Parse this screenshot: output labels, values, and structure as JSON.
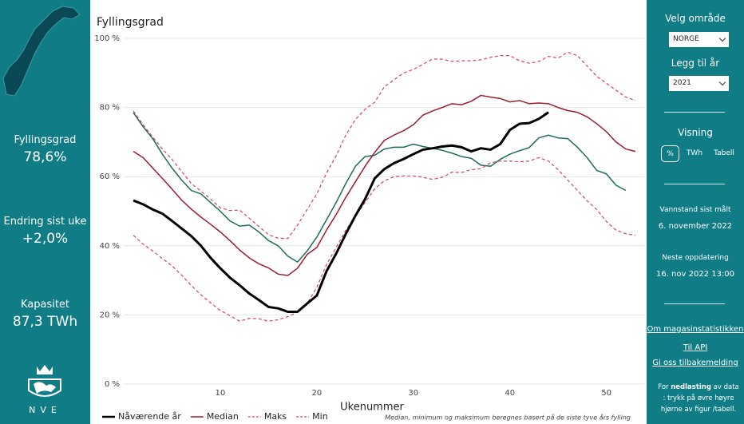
{
  "left_panel": {
    "stats": [
      {
        "label": "Fyllingsgrad",
        "value": "78,6%"
      },
      {
        "label": "Endring sist uke",
        "value": "+2,0%"
      },
      {
        "label": "Kapasitet",
        "value": "87,3 TWh"
      }
    ],
    "logo_text": "NVE"
  },
  "right_panel": {
    "area_label": "Velg område",
    "area_value": "NORGE",
    "year_label": "Legg til år",
    "year_value": "2021",
    "view_label": "Visning",
    "view_options": [
      "%",
      "TWh",
      "Tabell"
    ],
    "measured_label": "Vannstand sist målt",
    "measured_value": "6. november 2022",
    "update_label": "Neste oppdatering",
    "update_value": "16. nov 2022 13:00",
    "links": [
      "Om magasinstatistikken",
      "Til API",
      "Gi oss tilbakemelding"
    ],
    "note": {
      "before": "For",
      "bold": "nedlasting",
      "after": "av data : trykk på øvre høyre hjørne av figur /tabell."
    }
  },
  "chart_data": {
    "type": "line",
    "title": "Fyllingsgrad",
    "xlabel": "Ukenummer",
    "note": "Median, minimum og maksimum beregnes basert på de siste tyve års fylling",
    "x": [
      1,
      2,
      3,
      4,
      5,
      6,
      7,
      8,
      9,
      10,
      11,
      12,
      13,
      14,
      15,
      16,
      17,
      18,
      19,
      20,
      21,
      22,
      23,
      24,
      25,
      26,
      27,
      28,
      29,
      30,
      31,
      32,
      33,
      34,
      35,
      36,
      37,
      38,
      39,
      40,
      41,
      42,
      43,
      44,
      45,
      46,
      47,
      48,
      49,
      50,
      51,
      52,
      53
    ],
    "xlim": [
      0,
      54
    ],
    "xticks": [
      10,
      20,
      30,
      40,
      50
    ],
    "ylim": [
      0,
      100
    ],
    "yticks": [
      {
        "value": 0,
        "label": "0 %"
      },
      {
        "value": 20,
        "label": "20 %"
      },
      {
        "value": 40,
        "label": "40 %"
      },
      {
        "value": 60,
        "label": "60 %"
      },
      {
        "value": 80,
        "label": "80 %"
      },
      {
        "value": 100,
        "label": "100 %"
      }
    ],
    "grid": true,
    "series": [
      {
        "color": "#1e6b5c",
        "dashed": false,
        "line_width": 1.5,
        "values": [
          78.5,
          74.5,
          71,
          66.5,
          62.5,
          59,
          56,
          55,
          52.5,
          50,
          47.2,
          45.7,
          46,
          44,
          41.5,
          40,
          37,
          35.3,
          38.5,
          42.5,
          47.5,
          52.5,
          58,
          63,
          65.8,
          66.2,
          68,
          68.5,
          68.5,
          69.4,
          68.7,
          68.2,
          67.6,
          66.8,
          65.8,
          65.3,
          63.3,
          63,
          65,
          66.5,
          67.5,
          68.4,
          71.2,
          72,
          71.2,
          71,
          68.5,
          65.5,
          61.8,
          60.8,
          57.5,
          56,
          null
        ]
      },
      {
        "name": "Min",
        "color": "#d6455a",
        "dashed": true,
        "line_width": 1.2,
        "values": [
          43,
          40.5,
          38.5,
          36.3,
          34.2,
          31.5,
          28.5,
          25.8,
          23.5,
          21.3,
          19.8,
          18.2,
          19,
          18.9,
          18.2,
          18.6,
          19.5,
          20.8,
          23.3,
          28,
          34.5,
          39.5,
          44.5,
          48.5,
          52.5,
          56.5,
          58.8,
          60,
          60.2,
          60.2,
          59.8,
          59.2,
          59.8,
          61.3,
          61.2,
          62,
          62.3,
          64,
          64.5,
          64.5,
          64.3,
          64.5,
          65.5,
          64.5,
          62,
          59,
          56,
          53,
          50.5,
          47,
          44.5,
          43.5,
          43
        ]
      },
      {
        "name": "Maks",
        "color": "#d6455a",
        "dashed": true,
        "line_width": 1.2,
        "values": [
          79,
          75,
          71.5,
          68,
          65,
          61.5,
          58,
          55.8,
          53.5,
          51,
          50.2,
          50.3,
          48,
          45.6,
          43.2,
          42.2,
          42.1,
          46,
          50.5,
          55,
          61,
          66,
          72,
          76.5,
          79.5,
          81.5,
          86,
          88,
          90,
          91,
          92.5,
          94,
          94,
          93.3,
          93.5,
          93.5,
          93.8,
          94.5,
          95,
          95,
          93.5,
          92.8,
          93.3,
          94.8,
          94.3,
          96,
          95,
          92,
          89,
          87,
          85,
          83,
          82
        ]
      },
      {
        "name": "Median",
        "color": "#a01b2b",
        "dashed": false,
        "line_width": 1.5,
        "values": [
          67.3,
          65.5,
          62.5,
          59.5,
          56.4,
          53.2,
          50.6,
          48.3,
          46.2,
          44,
          41.5,
          38.8,
          36.5,
          34.8,
          33.6,
          31.8,
          31.4,
          33.5,
          37.5,
          39.5,
          44.5,
          49,
          54,
          58.5,
          63,
          67,
          70.5,
          72,
          73.3,
          75,
          77.8,
          79,
          80,
          81.1,
          80.8,
          81.8,
          83.5,
          83,
          82.6,
          81.6,
          82,
          81.1,
          81.3,
          81.1,
          80,
          79.1,
          78.6,
          77.3,
          75.3,
          73,
          70,
          68,
          67.3
        ]
      },
      {
        "name": "Nåværende år",
        "color": "#000000",
        "dashed": false,
        "line_width": 3,
        "values": [
          53.1,
          52,
          50.5,
          49.3,
          47.2,
          45,
          42.8,
          40,
          36.5,
          33.5,
          30.8,
          28.6,
          26.2,
          24.3,
          22.3,
          21.9,
          20.9,
          20.9,
          23.3,
          25.6,
          32.6,
          37.7,
          43.4,
          48.7,
          53.5,
          59.5,
          62.2,
          63.9,
          65.1,
          66.5,
          67.8,
          68.2,
          68.7,
          69,
          68.5,
          67.3,
          68.2,
          67.8,
          69.4,
          73.5,
          75.3,
          75.5,
          76.7,
          78.6,
          null,
          null,
          null,
          null,
          null,
          null,
          null,
          null,
          null
        ]
      }
    ],
    "legend_order": [
      4,
      3,
      2,
      1
    ]
  }
}
